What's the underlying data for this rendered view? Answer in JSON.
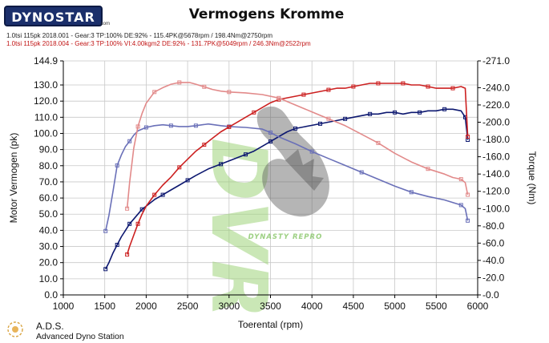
{
  "header": {
    "logo_text": "DYNOSTAR",
    "logo_suffix": ".com",
    "title": "Vermogens Kromme",
    "run1": "1.0tsi 115pk 2018.001 - Gear:3 TP:100% DE:92%  - 115.4PK@5678rpm / 198.4Nm@2750rpm",
    "run2": "1.0tsi 115pk 2018.004 - Gear:3 TP:100% VI:4.00kgm2 DE:92%  - 131.7PK@5049rpm / 246.3Nm@2522rpm"
  },
  "watermark": {
    "text": "DYNASTY REPRO",
    "letters": "DVR"
  },
  "footer": {
    "name": "A.D.S.",
    "sub": "Advanced Dyno Station"
  },
  "chart_data": {
    "type": "line",
    "title": "Vermogens Kromme",
    "xlabel": "Toerental (rpm)",
    "ylabel": "Motor Vermogen (pk)",
    "y2label": "Torque (Nm)",
    "xlim": [
      1000,
      6000
    ],
    "ylim": [
      0,
      144.9
    ],
    "y2lim": [
      0,
      271
    ],
    "x_ticks": [
      "1000",
      "1500",
      "2000",
      "2500",
      "3000",
      "3500",
      "4000",
      "4500",
      "5000",
      "5500",
      "6000"
    ],
    "y_ticks": [
      "0.0",
      "10.0",
      "20.0",
      "30.0",
      "40.0",
      "50.0",
      "60.0",
      "70.0",
      "80.0",
      "90.0",
      "100.0",
      "110.0",
      "120.0",
      "130.0",
      "144.9"
    ],
    "y2_ticks": [
      "-0.0",
      "-20.0",
      "-40.0",
      "-60.0",
      "-80.0",
      "-100.0",
      "-120.0",
      "-140.0",
      "-160.0",
      "-180.0",
      "-200.0",
      "-220.0",
      "-240.0",
      "-271.0"
    ],
    "grid": true,
    "colors": {
      "run1_power": "#0d1870",
      "run1_torque": "#6a70b8",
      "run2_power": "#cc2020",
      "run2_torque": "#e28a8a"
    },
    "series": [
      {
        "name": "1.0tsi 115pk 2018.001",
        "axis": "power",
        "x": [
          1510,
          1550,
          1600,
          1650,
          1700,
          1750,
          1800,
          1850,
          1900,
          1950,
          2000,
          2100,
          2200,
          2300,
          2400,
          2500,
          2600,
          2750,
          2900,
          3000,
          3100,
          3200,
          3300,
          3400,
          3500,
          3600,
          3700,
          3800,
          3900,
          4000,
          4100,
          4200,
          4300,
          4400,
          4500,
          4600,
          4700,
          4800,
          4900,
          5000,
          5100,
          5200,
          5300,
          5400,
          5500,
          5600,
          5700,
          5800,
          5850,
          5880
        ],
        "y": [
          16,
          20,
          26,
          31,
          36,
          40,
          44,
          47,
          50,
          53,
          55,
          59,
          62,
          65,
          68,
          71,
          74,
          78,
          81,
          83,
          85,
          87,
          89,
          92,
          95,
          98,
          101,
          103,
          104,
          105,
          106,
          107,
          108,
          109,
          110,
          111,
          112,
          112,
          113,
          113,
          112,
          113,
          113,
          114,
          114,
          115,
          115,
          114,
          110,
          96
        ]
      },
      {
        "name": "1.0tsi 115pk 2018.001",
        "axis": "torque",
        "x": [
          1510,
          1550,
          1600,
          1650,
          1700,
          1750,
          1800,
          1850,
          1900,
          2000,
          2100,
          2200,
          2300,
          2400,
          2500,
          2600,
          2750,
          2900,
          3000,
          3200,
          3400,
          3500,
          3600,
          3800,
          4000,
          4200,
          4400,
          4600,
          4800,
          5000,
          5200,
          5400,
          5600,
          5800,
          5850,
          5880
        ],
        "y": [
          74,
          92,
          120,
          150,
          162,
          172,
          178,
          185,
          190,
          194,
          196,
          197,
          196,
          195,
          195,
          196,
          198,
          196,
          195,
          194,
          192,
          188,
          183,
          175,
          166,
          158,
          150,
          142,
          134,
          126,
          119,
          114,
          110,
          104,
          100,
          86
        ]
      },
      {
        "name": "1.0tsi 115pk 2018.004",
        "axis": "power",
        "x": [
          1770,
          1800,
          1850,
          1900,
          1950,
          2000,
          2100,
          2200,
          2300,
          2400,
          2500,
          2600,
          2700,
          2800,
          2900,
          3000,
          3100,
          3200,
          3300,
          3400,
          3500,
          3600,
          3700,
          3800,
          3900,
          4000,
          4100,
          4200,
          4300,
          4400,
          4500,
          4600,
          4700,
          4800,
          4900,
          5000,
          5100,
          5200,
          5300,
          5400,
          5500,
          5600,
          5700,
          5800,
          5850,
          5880
        ],
        "y": [
          25,
          30,
          37,
          44,
          50,
          55,
          62,
          68,
          73,
          79,
          84,
          89,
          93,
          97,
          101,
          104,
          107,
          110,
          113,
          116,
          119,
          121,
          122,
          123,
          124,
          125,
          126,
          127,
          128,
          128,
          129,
          130,
          131,
          131,
          131,
          131,
          131,
          130,
          130,
          129,
          128,
          128,
          128,
          129,
          128,
          98
        ]
      },
      {
        "name": "1.0tsi 115pk 2018.004",
        "axis": "torque",
        "x": [
          1770,
          1800,
          1850,
          1900,
          1950,
          2000,
          2100,
          2200,
          2300,
          2400,
          2522,
          2600,
          2700,
          2800,
          2900,
          3000,
          3200,
          3400,
          3600,
          3800,
          4000,
          4200,
          4400,
          4600,
          4800,
          5000,
          5200,
          5400,
          5600,
          5700,
          5800,
          5850,
          5880
        ],
        "y": [
          100,
          130,
          170,
          195,
          210,
          222,
          235,
          240,
          244,
          246,
          246,
          244,
          241,
          238,
          236,
          235,
          234,
          232,
          228,
          220,
          212,
          204,
          196,
          186,
          176,
          164,
          154,
          146,
          140,
          136,
          134,
          130,
          116
        ]
      }
    ]
  }
}
